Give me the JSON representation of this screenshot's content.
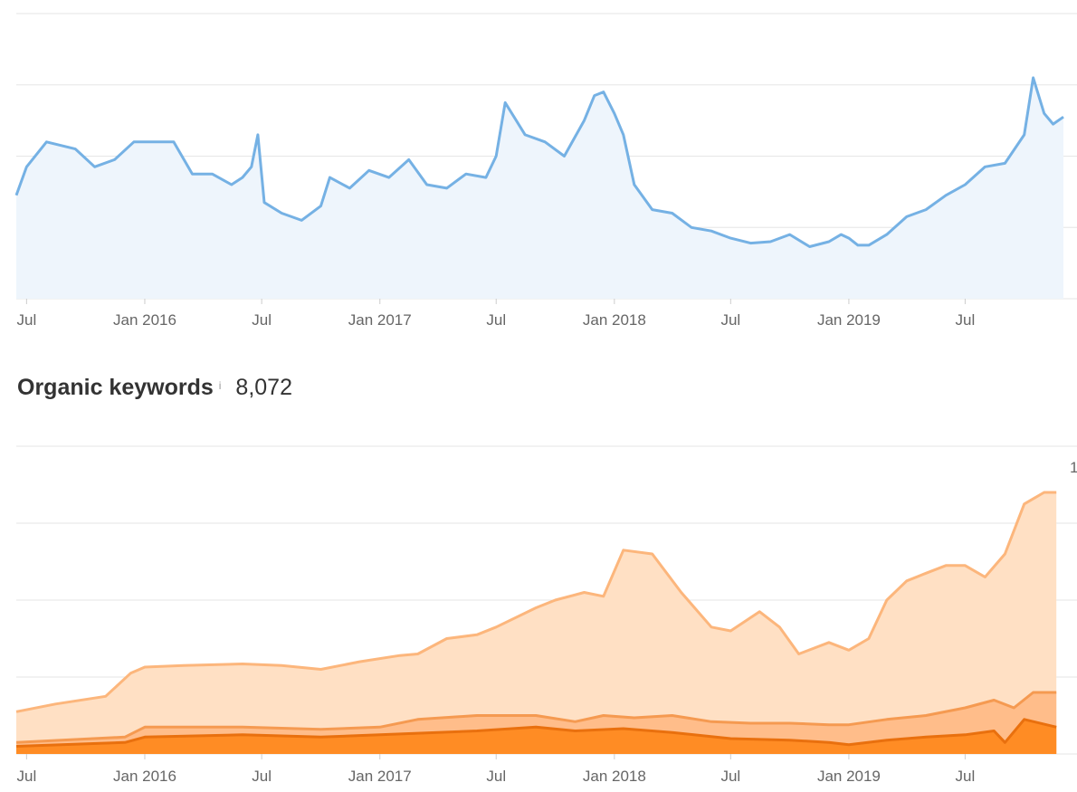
{
  "section": {
    "title": "Organic keywords",
    "info_icon": "i",
    "count": "8,072"
  },
  "right_clip_label": "1",
  "colors": {
    "traffic_line": "#75b1e4",
    "traffic_fill": "#eef5fc",
    "grid": "#e6e6e6",
    "kw_top": "#ffe0c4",
    "kw_top_line": "#fcb67c",
    "kw_mid": "#ffbd8a",
    "kw_mid_line": "#f59a51",
    "kw_low": "#ff8c24",
    "kw_low_line": "#e9700e"
  },
  "chart_data": [
    {
      "type": "line",
      "title": "",
      "x_tick_labels": [
        "Jul",
        "Jan 2016",
        "Jul",
        "Jan 2017",
        "Jul",
        "Jan 2018",
        "Jul",
        "Jan 2019",
        "Jul"
      ],
      "x_tick_dates": [
        "2015-07",
        "2016-01",
        "2016-07",
        "2017-01",
        "2017-07",
        "2018-01",
        "2018-07",
        "2019-01",
        "2019-07"
      ],
      "x_range": [
        "2015-06-15",
        "2019-12-01"
      ],
      "ylim": [
        0,
        4
      ],
      "y_tick_labels": [],
      "grid": true,
      "series": [
        {
          "x": [
            "2015-06-15",
            "2015-07-01",
            "2015-08-01",
            "2015-09-15",
            "2015-10-15",
            "2015-11-15",
            "2015-12-15",
            "2016-01-15",
            "2016-02-15",
            "2016-03-15",
            "2016-04-15",
            "2016-05-15",
            "2016-06-01",
            "2016-06-15",
            "2016-06-25",
            "2016-07-05",
            "2016-08-01",
            "2016-09-01",
            "2016-10-01",
            "2016-10-15",
            "2016-11-15",
            "2016-12-15",
            "2017-01-15",
            "2017-02-15",
            "2017-03-15",
            "2017-04-15",
            "2017-05-15",
            "2017-06-15",
            "2017-07-01",
            "2017-07-15",
            "2017-08-15",
            "2017-09-15",
            "2017-10-15",
            "2017-11-15",
            "2017-12-01",
            "2017-12-15",
            "2018-01-01",
            "2018-01-15",
            "2018-02-01",
            "2018-03-01",
            "2018-04-01",
            "2018-05-01",
            "2018-06-01",
            "2018-07-01",
            "2018-08-01",
            "2018-09-01",
            "2018-10-01",
            "2018-11-01",
            "2018-12-01",
            "2018-12-20",
            "2019-01-01",
            "2019-01-15",
            "2019-02-01",
            "2019-03-01",
            "2019-04-01",
            "2019-05-01",
            "2019-06-01",
            "2019-07-01",
            "2019-08-01",
            "2019-09-01",
            "2019-10-01",
            "2019-10-15",
            "2019-11-01",
            "2019-11-15",
            "2019-12-01"
          ],
          "y": [
            1.45,
            1.85,
            2.2,
            2.1,
            1.85,
            1.95,
            2.2,
            2.2,
            2.2,
            1.75,
            1.75,
            1.6,
            1.7,
            1.85,
            2.3,
            1.35,
            1.2,
            1.1,
            1.3,
            1.7,
            1.55,
            1.8,
            1.7,
            1.95,
            1.6,
            1.55,
            1.75,
            1.7,
            2.0,
            2.75,
            2.3,
            2.2,
            2.0,
            2.5,
            2.85,
            2.9,
            2.6,
            2.3,
            1.6,
            1.25,
            1.2,
            1.0,
            0.95,
            0.85,
            0.78,
            0.8,
            0.9,
            0.73,
            0.8,
            0.9,
            0.85,
            0.75,
            0.75,
            0.9,
            1.15,
            1.25,
            1.45,
            1.6,
            1.85,
            1.9,
            2.3,
            3.1,
            2.6,
            2.45,
            2.55
          ]
        }
      ]
    },
    {
      "type": "area",
      "title": "Organic keywords",
      "x_tick_labels": [
        "Jul",
        "Jan 2016",
        "Jul",
        "Jan 2017",
        "Jul",
        "Jan 2018",
        "Jul",
        "Jan 2019",
        "Jul"
      ],
      "x_tick_dates": [
        "2015-07",
        "2016-01",
        "2016-07",
        "2017-01",
        "2017-07",
        "2018-01",
        "2018-07",
        "2019-01",
        "2019-07"
      ],
      "x_range": [
        "2015-06-15",
        "2019-12-01"
      ],
      "ylim": [
        0,
        4
      ],
      "y_tick_labels": [],
      "grid": true,
      "stacked": true,
      "series": [
        {
          "x": [
            "2015-06-15",
            "2015-08-15",
            "2015-11-01",
            "2015-12-10",
            "2016-01-01",
            "2016-03-01",
            "2016-06-01",
            "2016-08-01",
            "2016-10-01",
            "2016-12-01",
            "2017-02-01",
            "2017-03-01",
            "2017-04-15",
            "2017-06-01",
            "2017-07-01",
            "2017-09-01",
            "2017-10-01",
            "2017-11-15",
            "2017-12-15",
            "2018-01-15",
            "2018-03-01",
            "2018-04-15",
            "2018-06-01",
            "2018-07-01",
            "2018-08-15",
            "2018-09-15",
            "2018-10-15",
            "2018-12-01",
            "2019-01-01",
            "2019-02-01",
            "2019-03-01",
            "2019-04-01",
            "2019-05-01",
            "2019-06-01",
            "2019-07-01",
            "2019-08-01",
            "2019-09-01",
            "2019-10-01",
            "2019-11-01",
            "2019-11-20"
          ],
          "y": [
            0.55,
            0.65,
            0.75,
            1.05,
            1.13,
            1.15,
            1.17,
            1.15,
            1.1,
            1.2,
            1.28,
            1.3,
            1.5,
            1.55,
            1.65,
            1.9,
            2.0,
            2.1,
            2.05,
            2.65,
            2.6,
            2.1,
            1.65,
            1.6,
            1.85,
            1.65,
            1.3,
            1.45,
            1.35,
            1.5,
            2.0,
            2.25,
            2.35,
            2.45,
            2.45,
            2.3,
            2.6,
            3.25,
            3.4,
            3.4
          ]
        },
        {
          "x": [
            "2015-06-15",
            "2015-12-01",
            "2016-01-01",
            "2016-06-01",
            "2016-10-01",
            "2017-01-01",
            "2017-03-01",
            "2017-06-01",
            "2017-09-01",
            "2017-11-01",
            "2017-12-15",
            "2018-02-01",
            "2018-04-01",
            "2018-06-01",
            "2018-08-01",
            "2018-10-01",
            "2018-12-01",
            "2019-01-01",
            "2019-03-01",
            "2019-05-01",
            "2019-07-01",
            "2019-08-15",
            "2019-09-15",
            "2019-10-15",
            "2019-11-20"
          ],
          "y": [
            0.15,
            0.22,
            0.35,
            0.35,
            0.32,
            0.35,
            0.45,
            0.5,
            0.5,
            0.42,
            0.5,
            0.47,
            0.5,
            0.42,
            0.4,
            0.4,
            0.38,
            0.38,
            0.45,
            0.5,
            0.6,
            0.7,
            0.6,
            0.8,
            0.8
          ]
        },
        {
          "x": [
            "2015-06-15",
            "2015-12-01",
            "2016-01-01",
            "2016-06-01",
            "2016-10-01",
            "2017-01-01",
            "2017-06-01",
            "2017-09-01",
            "2017-11-01",
            "2018-01-15",
            "2018-04-01",
            "2018-07-01",
            "2018-10-01",
            "2018-12-01",
            "2019-01-01",
            "2019-03-01",
            "2019-05-01",
            "2019-07-01",
            "2019-08-15",
            "2019-09-01",
            "2019-10-01",
            "2019-11-20"
          ],
          "y": [
            0.1,
            0.15,
            0.22,
            0.25,
            0.22,
            0.25,
            0.3,
            0.35,
            0.3,
            0.33,
            0.28,
            0.2,
            0.18,
            0.15,
            0.12,
            0.18,
            0.22,
            0.25,
            0.3,
            0.15,
            0.45,
            0.35
          ]
        }
      ]
    }
  ]
}
